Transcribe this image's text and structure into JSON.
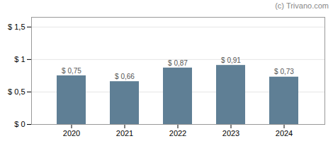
{
  "chart_data": {
    "type": "bar",
    "categories": [
      "2020",
      "2021",
      "2022",
      "2023",
      "2024"
    ],
    "values": [
      0.75,
      0.66,
      0.87,
      0.91,
      0.73
    ],
    "value_labels": [
      "$ 0,75",
      "$ 0,66",
      "$ 0,87",
      "$ 0,91",
      "$ 0,73"
    ],
    "data_labels": true,
    "color": "#5f7f95",
    "ylim": [
      0,
      1.65
    ],
    "yticks": [
      {
        "value": 0,
        "label": "$ 0"
      },
      {
        "value": 0.5,
        "label": "$ 0,5"
      },
      {
        "value": 1.0,
        "label": "$ 1"
      },
      {
        "value": 1.5,
        "label": "$ 1,5"
      }
    ],
    "grid": true,
    "annotations": [
      "(c) Trivano.com"
    ]
  }
}
